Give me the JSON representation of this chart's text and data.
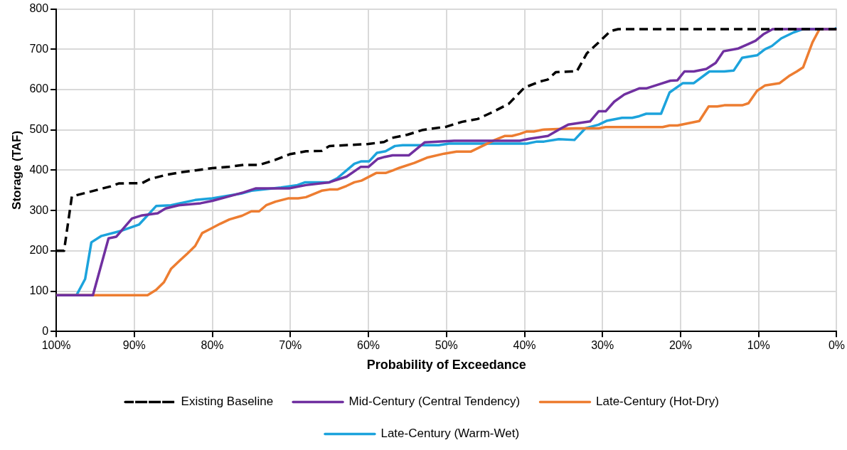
{
  "chart_data": {
    "type": "line",
    "xlabel": "Probability of Exceedance",
    "ylabel": "Storage (TAF)",
    "xlim": [
      100,
      0
    ],
    "xticks": [
      {
        "value": 100,
        "label": "100%"
      },
      {
        "value": 90,
        "label": "90%"
      },
      {
        "value": 80,
        "label": "80%"
      },
      {
        "value": 70,
        "label": "70%"
      },
      {
        "value": 60,
        "label": "60%"
      },
      {
        "value": 50,
        "label": "50%"
      },
      {
        "value": 40,
        "label": "40%"
      },
      {
        "value": 30,
        "label": "30%"
      },
      {
        "value": 20,
        "label": "20%"
      },
      {
        "value": 10,
        "label": "10%"
      },
      {
        "value": 0,
        "label": "0%"
      }
    ],
    "ylim": [
      0,
      800
    ],
    "yticks": [
      0,
      100,
      200,
      300,
      400,
      500,
      600,
      700,
      800
    ],
    "grid": true,
    "legend": "bottom",
    "marker": "none",
    "series": [
      {
        "name": "Existing Baseline",
        "color": "#000000",
        "line_style": "dashed",
        "x": [
          100,
          99,
          98,
          96,
          94,
          93,
          92,
          89,
          88,
          86,
          84,
          82,
          80,
          78,
          76,
          74,
          72,
          70,
          68,
          66,
          65,
          62,
          60,
          58,
          57,
          55,
          53,
          50,
          48,
          46,
          44,
          42,
          40,
          38,
          37,
          36,
          34,
          33.3,
          32,
          30.6,
          29,
          28,
          10,
          0
        ],
        "values": [
          200,
          200,
          335,
          345,
          355,
          360,
          367,
          368,
          378,
          388,
          395,
          400,
          405,
          408,
          413,
          413,
          425,
          440,
          447,
          448,
          460,
          463,
          465,
          470,
          480,
          488,
          500,
          508,
          520,
          527,
          545,
          565,
          605,
          620,
          625,
          643,
          645,
          645,
          690,
          715,
          745,
          750,
          750,
          750
        ]
      },
      {
        "name": "Mid-Century (Central Tendency)",
        "color": "#7030a0",
        "line_style": "solid",
        "x": [
          100,
          95.3,
          93.3,
          92.3,
          90.3,
          89,
          87,
          86,
          84.3,
          81.5,
          80,
          77.5,
          76,
          74.4,
          70.2,
          68,
          65,
          62.8,
          61,
          60,
          58.8,
          57.9,
          56.9,
          54.8,
          52.8,
          49,
          40.6,
          39.4,
          37,
          35.3,
          34.4,
          31.6,
          30.5,
          29.6,
          28.5,
          27.2,
          25.3,
          24.4,
          22.9,
          21.3,
          20.4,
          19.5,
          18.3,
          16.7,
          15.5,
          14.5,
          12.6,
          11.3,
          10.4,
          9.4,
          8.2,
          0
        ],
        "values": [
          90,
          90,
          231,
          235,
          280,
          288,
          293,
          305,
          313,
          318,
          324,
          337,
          345,
          355,
          355,
          363,
          370,
          384,
          408,
          408,
          428,
          433,
          437,
          437,
          469,
          473,
          473,
          478,
          485,
          504,
          513,
          521,
          546,
          546,
          570,
          588,
          603,
          603,
          612,
          622,
          623,
          645,
          645,
          651,
          666,
          695,
          702,
          713,
          721,
          737,
          750,
          750
        ]
      },
      {
        "name": "Late-Century (Hot-Dry)",
        "color": "#ed7d31",
        "line_style": "solid",
        "x": [
          100,
          88.3,
          87.2,
          86.2,
          85.3,
          84.1,
          83.2,
          82.2,
          81.3,
          80.3,
          79,
          77.8,
          76.2,
          75,
          74,
          73.1,
          71.9,
          70.3,
          69,
          68,
          66,
          65,
          64,
          62.8,
          61.8,
          60.9,
          59,
          57.8,
          56.9,
          56,
          54.1,
          52.5,
          50.3,
          48.7,
          46.9,
          45.4,
          43.8,
          42.5,
          41.6,
          40.6,
          39.7,
          38.8,
          37.5,
          33.5,
          30.5,
          29.6,
          22.3,
          21.4,
          20.4,
          17.6,
          16.4,
          15.3,
          14.4,
          12.1,
          11.3,
          10.2,
          9.2,
          7.3,
          6,
          5.1,
          4.3,
          3.1,
          2.2,
          0
        ],
        "values": [
          90,
          90,
          103,
          122,
          155,
          177,
          193,
          212,
          244,
          254,
          267,
          278,
          287,
          298,
          298,
          313,
          322,
          330,
          330,
          333,
          349,
          352,
          352,
          361,
          370,
          374,
          393,
          393,
          399,
          406,
          418,
          431,
          441,
          446,
          446,
          460,
          475,
          485,
          485,
          490,
          496,
          496,
          501,
          504,
          504,
          507,
          507,
          511,
          511,
          522,
          558,
          558,
          561,
          561,
          566,
          597,
          610,
          616,
          635,
          645,
          655,
          717,
          750,
          750
        ]
      },
      {
        "name": "Late-Century (Warm-Wet)",
        "color": "#1ca3dc",
        "line_style": "solid",
        "x": [
          100,
          97.4,
          96.3,
          95.5,
          94.2,
          91.6,
          89.4,
          87.2,
          85.3,
          82.2,
          80,
          76.3,
          75,
          71.2,
          69.1,
          68.1,
          65,
          64,
          61.8,
          60.9,
          59.9,
          58.9,
          57.8,
          56.6,
          55.6,
          51,
          49.7,
          39.7,
          38.4,
          37.5,
          35.6,
          33.6,
          32.2,
          30.5,
          29.4,
          27.5,
          26.2,
          25.3,
          24.4,
          22.5,
          21.4,
          19.7,
          18.3,
          16.3,
          14.4,
          13.2,
          12.1,
          10.2,
          9.2,
          8.3,
          7.1,
          5.5,
          4.3,
          0.3,
          0
        ],
        "values": [
          90,
          90,
          130,
          221,
          237,
          250,
          265,
          311,
          313,
          326,
          330,
          342,
          349,
          357,
          363,
          370,
          370,
          380,
          416,
          422,
          422,
          443,
          447,
          460,
          462,
          462,
          466,
          466,
          471,
          471,
          477,
          475,
          504,
          513,
          523,
          530,
          530,
          534,
          540,
          540,
          593,
          616,
          616,
          645,
          645,
          647,
          679,
          685,
          700,
          708,
          727,
          742,
          750,
          750,
          753
        ]
      }
    ]
  }
}
